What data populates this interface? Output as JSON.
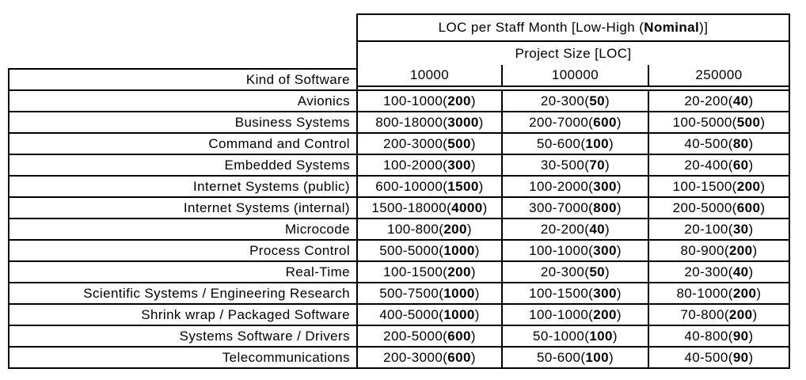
{
  "colors": {
    "text": "#000000",
    "border": "#000000",
    "background": "#ffffff"
  },
  "chart_data": {
    "type": "table",
    "title": "LOC per Staff Month [Low-High (Nominal)]",
    "title_parts": {
      "prefix": "LOC per Staff Month [Low-High (",
      "bold": "Nominal",
      "suffix": ")]"
    },
    "column_group_label": "Project Size [LOC]",
    "row_header": "Kind of Software",
    "columns": [
      "10000",
      "100000",
      "250000"
    ],
    "punctuation": {
      "range_separator": "-",
      "nominal_open": "(",
      "nominal_close": ")"
    },
    "rows": [
      {
        "kind": "Avionics",
        "cells": [
          {
            "low": 100,
            "high": 1000,
            "nominal": 200
          },
          {
            "low": 20,
            "high": 300,
            "nominal": 50
          },
          {
            "low": 20,
            "high": 200,
            "nominal": 40
          }
        ]
      },
      {
        "kind": "Business Systems",
        "cells": [
          {
            "low": 800,
            "high": 18000,
            "nominal": 3000
          },
          {
            "low": 200,
            "high": 7000,
            "nominal": 600
          },
          {
            "low": 100,
            "high": 5000,
            "nominal": 500
          }
        ]
      },
      {
        "kind": "Command and Control",
        "cells": [
          {
            "low": 200,
            "high": 3000,
            "nominal": 500
          },
          {
            "low": 50,
            "high": 600,
            "nominal": 100
          },
          {
            "low": 40,
            "high": 500,
            "nominal": 80
          }
        ]
      },
      {
        "kind": "Embedded Systems",
        "cells": [
          {
            "low": 100,
            "high": 2000,
            "nominal": 300
          },
          {
            "low": 30,
            "high": 500,
            "nominal": 70
          },
          {
            "low": 20,
            "high": 400,
            "nominal": 60
          }
        ]
      },
      {
        "kind": "Internet Systems (public)",
        "cells": [
          {
            "low": 600,
            "high": 10000,
            "nominal": 1500
          },
          {
            "low": 100,
            "high": 2000,
            "nominal": 300
          },
          {
            "low": 100,
            "high": 1500,
            "nominal": 200
          }
        ]
      },
      {
        "kind": "Internet Systems (internal)",
        "cells": [
          {
            "low": 1500,
            "high": 18000,
            "nominal": 4000
          },
          {
            "low": 300,
            "high": 7000,
            "nominal": 800
          },
          {
            "low": 200,
            "high": 5000,
            "nominal": 600
          }
        ]
      },
      {
        "kind": "Microcode",
        "cells": [
          {
            "low": 100,
            "high": 800,
            "nominal": 200
          },
          {
            "low": 20,
            "high": 200,
            "nominal": 40
          },
          {
            "low": 20,
            "high": 100,
            "nominal": 30
          }
        ]
      },
      {
        "kind": "Process Control",
        "cells": [
          {
            "low": 500,
            "high": 5000,
            "nominal": 1000
          },
          {
            "low": 100,
            "high": 1000,
            "nominal": 300
          },
          {
            "low": 80,
            "high": 900,
            "nominal": 200
          }
        ]
      },
      {
        "kind": "Real-Time",
        "cells": [
          {
            "low": 100,
            "high": 1500,
            "nominal": 200
          },
          {
            "low": 20,
            "high": 300,
            "nominal": 50
          },
          {
            "low": 20,
            "high": 300,
            "nominal": 40
          }
        ]
      },
      {
        "kind": "Scientific Systems / Engineering Research",
        "cells": [
          {
            "low": 500,
            "high": 7500,
            "nominal": 1000
          },
          {
            "low": 100,
            "high": 1500,
            "nominal": 300
          },
          {
            "low": 80,
            "high": 1000,
            "nominal": 200
          }
        ]
      },
      {
        "kind": "Shrink wrap / Packaged Software",
        "cells": [
          {
            "low": 400,
            "high": 5000,
            "nominal": 1000
          },
          {
            "low": 100,
            "high": 1000,
            "nominal": 200
          },
          {
            "low": 70,
            "high": 800,
            "nominal": 200
          }
        ]
      },
      {
        "kind": "Systems Software / Drivers",
        "cells": [
          {
            "low": 200,
            "high": 5000,
            "nominal": 600
          },
          {
            "low": 50,
            "high": 1000,
            "nominal": 100
          },
          {
            "low": 40,
            "high": 800,
            "nominal": 90
          }
        ]
      },
      {
        "kind": "Telecommunications",
        "cells": [
          {
            "low": 200,
            "high": 3000,
            "nominal": 600
          },
          {
            "low": 50,
            "high": 600,
            "nominal": 100
          },
          {
            "low": 40,
            "high": 500,
            "nominal": 90
          }
        ]
      }
    ]
  }
}
